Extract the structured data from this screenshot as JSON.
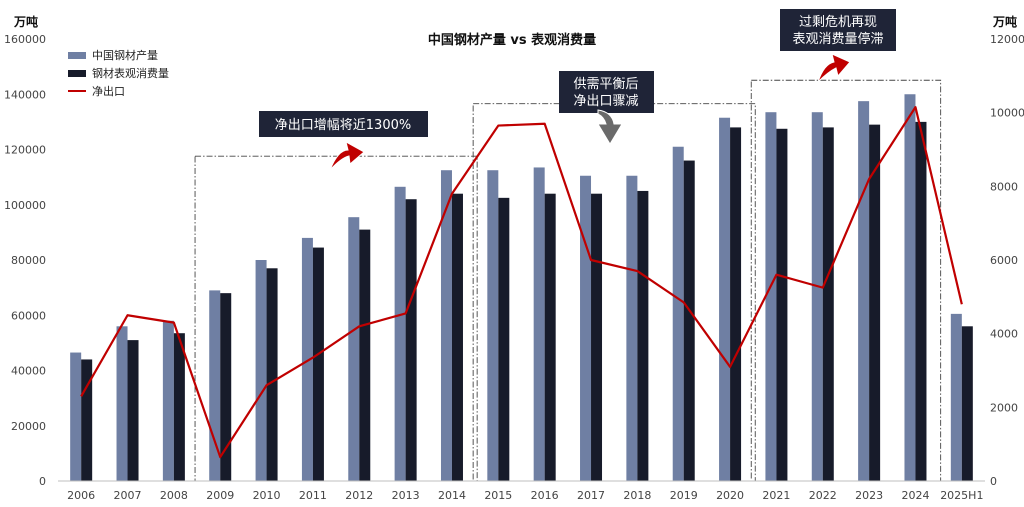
{
  "chart_data": {
    "type": "bar",
    "title": "中国钢材产量 vs 表观消费量",
    "y_left_unit": "万吨",
    "y_right_unit": "万吨",
    "y_left_lim": [
      0,
      160000
    ],
    "y_right_lim": [
      0,
      12000
    ],
    "y_left_ticks": [
      "0",
      "20000",
      "40000",
      "60000",
      "80000",
      "100000",
      "120000",
      "140000",
      "160000"
    ],
    "y_right_ticks": [
      "0",
      "2000",
      "4000",
      "6000",
      "8000",
      "10000",
      "12000"
    ],
    "categories": [
      "2006",
      "2007",
      "2008",
      "2009",
      "2010",
      "2011",
      "2012",
      "2013",
      "2014",
      "2015",
      "2016",
      "2017",
      "2018",
      "2019",
      "2020",
      "2021",
      "2022",
      "2023",
      "2024",
      "2025H1"
    ],
    "series": [
      {
        "name": "中国钢材产量",
        "kind": "bar",
        "axis": "left",
        "color": "#6F7FA3",
        "values": [
          46500,
          56000,
          58000,
          69000,
          80000,
          88000,
          95500,
          106500,
          112500,
          112500,
          113500,
          110500,
          110500,
          121000,
          131500,
          133500,
          133500,
          137500,
          140000,
          60500
        ]
      },
      {
        "name": "钢材表观消费量",
        "kind": "bar",
        "axis": "left",
        "color": "#171B2A",
        "values": [
          44000,
          51000,
          53500,
          68000,
          77000,
          84500,
          91000,
          102000,
          104000,
          102500,
          104000,
          104000,
          105000,
          116000,
          128000,
          127500,
          128000,
          129000,
          130000,
          56000
        ]
      },
      {
        "name": "净出口",
        "kind": "line",
        "axis": "right",
        "color": "#C00000",
        "values": [
          2300,
          4500,
          4300,
          650,
          2600,
          3350,
          4200,
          4550,
          7800,
          9650,
          9700,
          6000,
          5700,
          4850,
          3100,
          5600,
          5250,
          8200,
          10150,
          4800
        ]
      }
    ],
    "legend_position": "top-left",
    "annotations": [
      {
        "text": "净出口增幅将近1300%",
        "arrow": "up",
        "arrow_color": "#C00000"
      },
      {
        "text": "供需平衡后\n净出口骤减",
        "arrow": "down",
        "arrow_color": "#6A6A6A"
      },
      {
        "text": "过剩危机再现\n表观消费量停滞",
        "arrow": "up",
        "arrow_color": "#C00000"
      }
    ],
    "highlight_ranges": [
      [
        "2009",
        "2014"
      ],
      [
        "2015",
        "2020"
      ],
      [
        "2021",
        "2024"
      ]
    ],
    "grid": false
  }
}
